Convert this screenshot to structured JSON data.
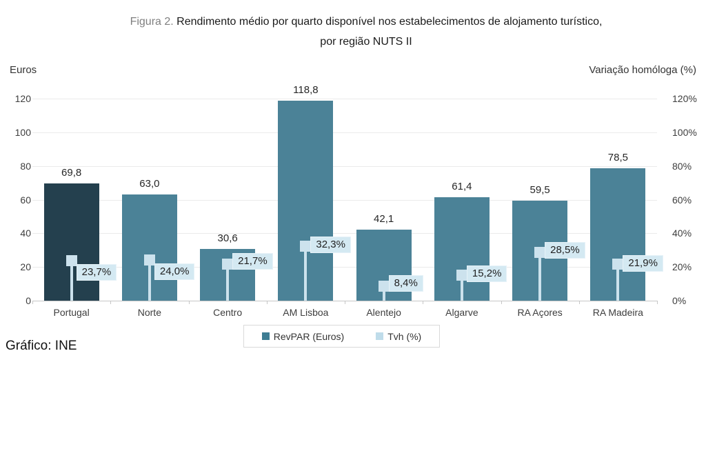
{
  "figure": {
    "label": "Figura 2.",
    "title_line1": "Rendimento médio por quarto disponível nos estabelecimentos de alojamento turístico,",
    "title_line2": "por região NUTS II"
  },
  "source": "Gráfico: INE",
  "chart_data": {
    "type": "bar",
    "title": "Rendimento médio por quarto disponível nos estabelecimentos de alojamento turístico, por região NUTS II",
    "categories": [
      "Portugal",
      "Norte",
      "Centro",
      "AM Lisboa",
      "Alentejo",
      "Algarve",
      "RA Açores",
      "RA Madeira"
    ],
    "series": [
      {
        "name": "RevPAR (Euros)",
        "axis": "left",
        "values": [
          69.8,
          63.0,
          30.6,
          118.8,
          42.1,
          61.4,
          59.5,
          78.5
        ],
        "labels": [
          "69,8",
          "63,0",
          "30,6",
          "118,8",
          "42,1",
          "61,4",
          "59,5",
          "78,5"
        ]
      },
      {
        "name": "Tvh (%)",
        "axis": "right",
        "values": [
          23.7,
          24.0,
          21.7,
          32.3,
          8.4,
          15.2,
          28.5,
          21.9
        ],
        "labels": [
          "23,7%",
          "24,0%",
          "21,7%",
          "32,3%",
          "8,4%",
          "15,2%",
          "28,5%",
          "21,9%"
        ]
      }
    ],
    "left_axis": {
      "title": "Euros",
      "min": 0,
      "max": 120,
      "ticks": [
        "0",
        "20",
        "40",
        "60",
        "80",
        "100",
        "120"
      ]
    },
    "right_axis": {
      "title": "Variação homóloga (%)",
      "min": 0,
      "max": 120,
      "ticks": [
        "0%",
        "20%",
        "40%",
        "60%",
        "80%",
        "100%",
        "120%"
      ]
    },
    "legend": {
      "position": "bottom",
      "entries": [
        "RevPAR (Euros)",
        "Tvh (%)"
      ]
    },
    "grid": true,
    "layout_hints": {
      "highlight_category": "Portugal",
      "tvh_label_dy": [
        18,
        18,
        -3,
        -1,
        -3,
        -1,
        -2,
        0
      ]
    }
  },
  "colors": {
    "bar_highlight": "#24404E",
    "bar_default": "#4B8297",
    "tvh_marker": "#CCE2ED",
    "tvh_label_bg": "#D4E9F2",
    "legend_revpar_swatch": "#3E7D93",
    "legend_tvh_swatch": "#BFDCEA",
    "grid_line": "#EBEBEB",
    "axis_line": "#C6C6C6",
    "figure_label_text": "#7F7F7F",
    "text": "#262626"
  }
}
